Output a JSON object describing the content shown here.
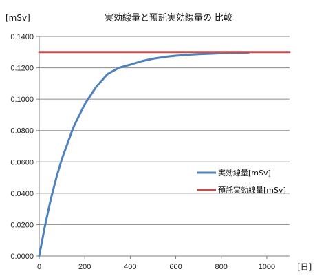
{
  "chart_data": {
    "type": "line",
    "title": "実効線量と預託実効線量の 比較",
    "ylabel": "[mSv]",
    "xlabel": "[日]",
    "xlim": [
      0,
      1100
    ],
    "ylim": [
      0,
      0.14
    ],
    "x_ticks": [
      "0",
      "200",
      "400",
      "600",
      "800",
      "1000"
    ],
    "y_ticks": [
      "0.0000",
      "0.0200",
      "0.0400",
      "0.0600",
      "0.0800",
      "0.1000",
      "0.1200",
      "0.1400"
    ],
    "grid": true,
    "legend_position": "right",
    "series": [
      {
        "name": "実効線量[mSv]",
        "color": "#4f81bd",
        "x": [
          0,
          25,
          50,
          75,
          100,
          150,
          200,
          250,
          300,
          350,
          400,
          450,
          500,
          550,
          600,
          650,
          700,
          750,
          800,
          850,
          900,
          920
        ],
        "y": [
          0.0,
          0.019,
          0.0355,
          0.0498,
          0.0621,
          0.082,
          0.0968,
          0.1078,
          0.116,
          0.12,
          0.122,
          0.1242,
          0.1258,
          0.1269,
          0.1277,
          0.1283,
          0.1287,
          0.129,
          0.1293,
          0.1295,
          0.1296,
          0.1297
        ]
      },
      {
        "name": "預託実効線量[mSv]",
        "color": "#c0504d",
        "x": [
          0,
          1100
        ],
        "y": [
          0.13,
          0.13
        ]
      }
    ]
  }
}
